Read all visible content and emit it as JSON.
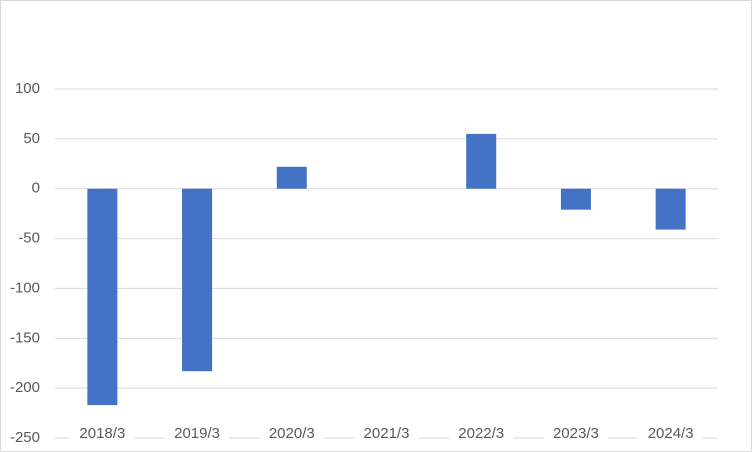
{
  "chart_data": {
    "type": "bar",
    "categories": [
      "2018/3",
      "2019/3",
      "2020/3",
      "2021/3",
      "2022/3",
      "2023/3",
      "2024/3"
    ],
    "values": [
      -217,
      -183,
      22,
      0,
      55,
      -21,
      -41
    ],
    "color": "#4472c4",
    "ylim": [
      -250,
      100
    ],
    "yticks": [
      -250,
      -200,
      -150,
      -100,
      -50,
      0,
      50,
      100
    ],
    "grid": true
  }
}
